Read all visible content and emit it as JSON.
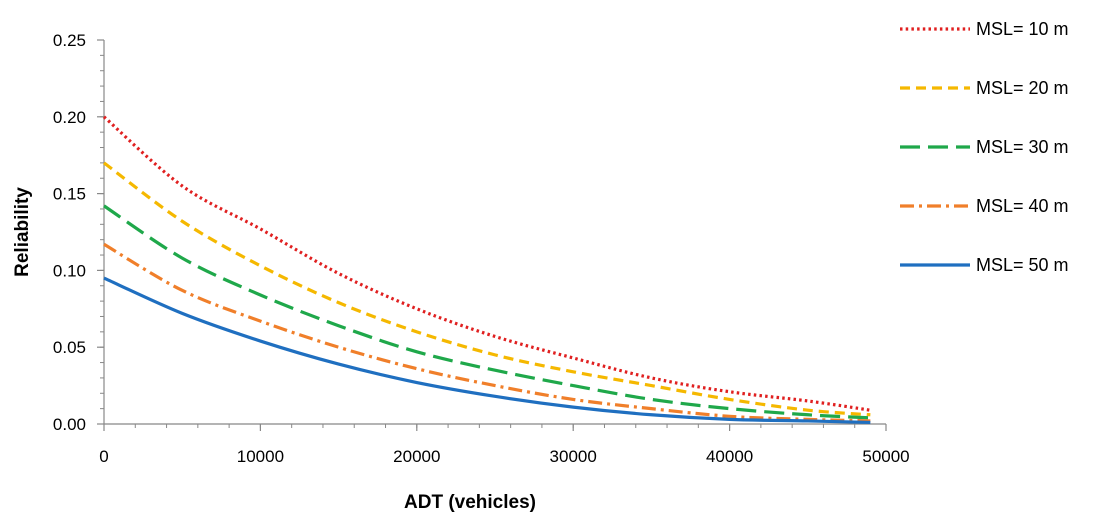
{
  "chart_data": {
    "type": "line",
    "title": "",
    "xlabel": "ADT (vehicles)",
    "ylabel": "Reliability",
    "xlim": [
      0,
      50000
    ],
    "ylim": [
      0,
      0.25
    ],
    "x_ticks": [
      "0",
      "10000",
      "20000",
      "30000",
      "40000",
      "50000"
    ],
    "y_ticks": [
      "0.00",
      "0.05",
      "0.10",
      "0.15",
      "0.20",
      "0.25"
    ],
    "grid": false,
    "legend_position": "right",
    "x": [
      0,
      5000,
      10000,
      15000,
      20000,
      25000,
      30000,
      35000,
      40000,
      45000,
      49000
    ],
    "series": [
      {
        "name": "MSL= 10 m",
        "color": "#e02020",
        "line_style": "dotted",
        "values": [
          0.2,
          0.155,
          0.127,
          0.098,
          0.075,
          0.057,
          0.043,
          0.03,
          0.021,
          0.015,
          0.009
        ]
      },
      {
        "name": "MSL= 20 m",
        "color": "#f5b800",
        "line_style": "dashed",
        "values": [
          0.17,
          0.132,
          0.103,
          0.079,
          0.06,
          0.045,
          0.034,
          0.025,
          0.016,
          0.009,
          0.006
        ]
      },
      {
        "name": "MSL= 30 m",
        "color": "#1fa84a",
        "line_style": "long-dash",
        "values": [
          0.142,
          0.108,
          0.084,
          0.064,
          0.047,
          0.035,
          0.025,
          0.016,
          0.01,
          0.006,
          0.004
        ]
      },
      {
        "name": "MSL= 40 m",
        "color": "#f07f2a",
        "line_style": "dash-dot",
        "values": [
          0.117,
          0.087,
          0.067,
          0.05,
          0.036,
          0.025,
          0.016,
          0.01,
          0.005,
          0.003,
          0.002
        ]
      },
      {
        "name": "MSL= 50 m",
        "color": "#1f6fc0",
        "line_style": "solid",
        "values": [
          0.095,
          0.072,
          0.054,
          0.039,
          0.027,
          0.018,
          0.011,
          0.006,
          0.003,
          0.002,
          0.001
        ]
      }
    ]
  }
}
